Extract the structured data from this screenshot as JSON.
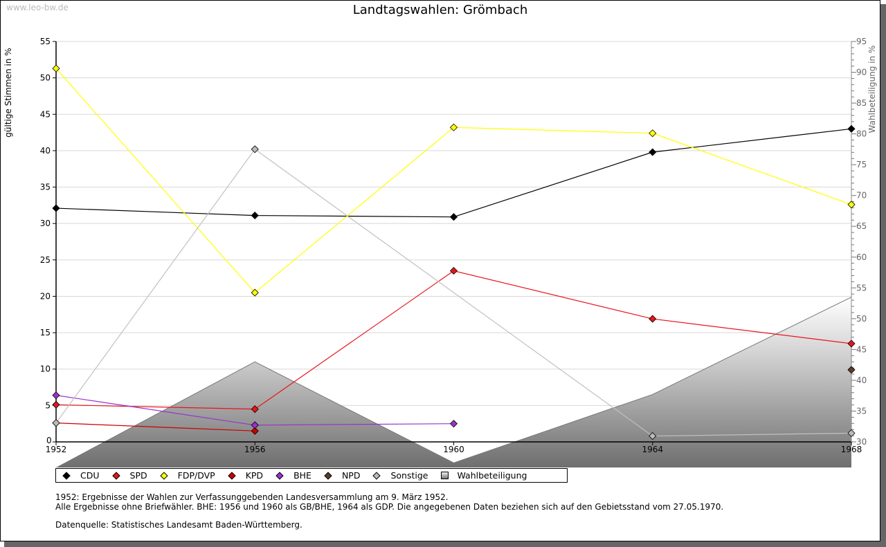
{
  "watermark": "www.leo-bw.de",
  "chart_data": {
    "type": "line",
    "title": "Landtagswahlen: Grömbach",
    "ylabel": "gültige Stimmen in %",
    "y2label": "Wahlbeteiligung in %",
    "xlabel": "",
    "categories": [
      "1952",
      "1956",
      "1960",
      "1964",
      "1968"
    ],
    "ylim": [
      0,
      55
    ],
    "yticks": [
      "0",
      "5",
      "10",
      "15",
      "20",
      "25",
      "30",
      "35",
      "40",
      "45",
      "50",
      "55"
    ],
    "y2lim": [
      30,
      95
    ],
    "y2ticks": [
      "30",
      "35",
      "40",
      "45",
      "50",
      "55",
      "60",
      "65",
      "70",
      "75",
      "80",
      "85",
      "90",
      "95"
    ],
    "grid": true,
    "legend_position": "bottom",
    "series": [
      {
        "name": "CDU",
        "color": "#000000",
        "line": "#000000",
        "values": [
          32.1,
          31.1,
          30.9,
          39.8,
          43.0
        ]
      },
      {
        "name": "SPD",
        "color": "#e8141c",
        "line": "#e8141c",
        "values": [
          5.1,
          4.5,
          23.5,
          16.9,
          13.5
        ]
      },
      {
        "name": "FDP/DVP",
        "color": "#ffff00",
        "line": "#ffff00",
        "values": [
          51.3,
          20.5,
          43.2,
          42.4,
          32.6
        ]
      },
      {
        "name": "KPD",
        "color": "#cc0000",
        "line": "#cc0000",
        "values": [
          2.6,
          1.5,
          null,
          null,
          null
        ]
      },
      {
        "name": "BHE",
        "color": "#9933cc",
        "line": "#9933cc",
        "values": [
          6.4,
          2.3,
          2.5,
          null,
          null
        ]
      },
      {
        "name": "NPD",
        "color": "#5c3d28",
        "line": "#5c3d28",
        "values": [
          null,
          null,
          null,
          null,
          9.9
        ]
      },
      {
        "name": "Sonstige",
        "color": "#bbbbbb",
        "line": "#c0c0c0",
        "values": [
          2.6,
          40.2,
          null,
          0.8,
          1.2
        ]
      }
    ],
    "area_series": {
      "name": "Wahlbeteiligung",
      "axis": "right",
      "values": [
        25.8,
        43.0,
        26.6,
        37.7,
        53.5
      ]
    }
  },
  "notes": [
    "1952: Ergebnisse der Wahlen zur Verfassunggebenden Landesversammlung am 9. März 1952.",
    "Alle Ergebnisse ohne Briefwähler. BHE: 1956 und 1960 als GB/BHE, 1964 als GDP. Die angegebenen Daten beziehen sich auf den Gebietsstand vom 27.05.1970.",
    "",
    "Datenquelle: Statistisches Landesamt Baden-Württemberg."
  ]
}
